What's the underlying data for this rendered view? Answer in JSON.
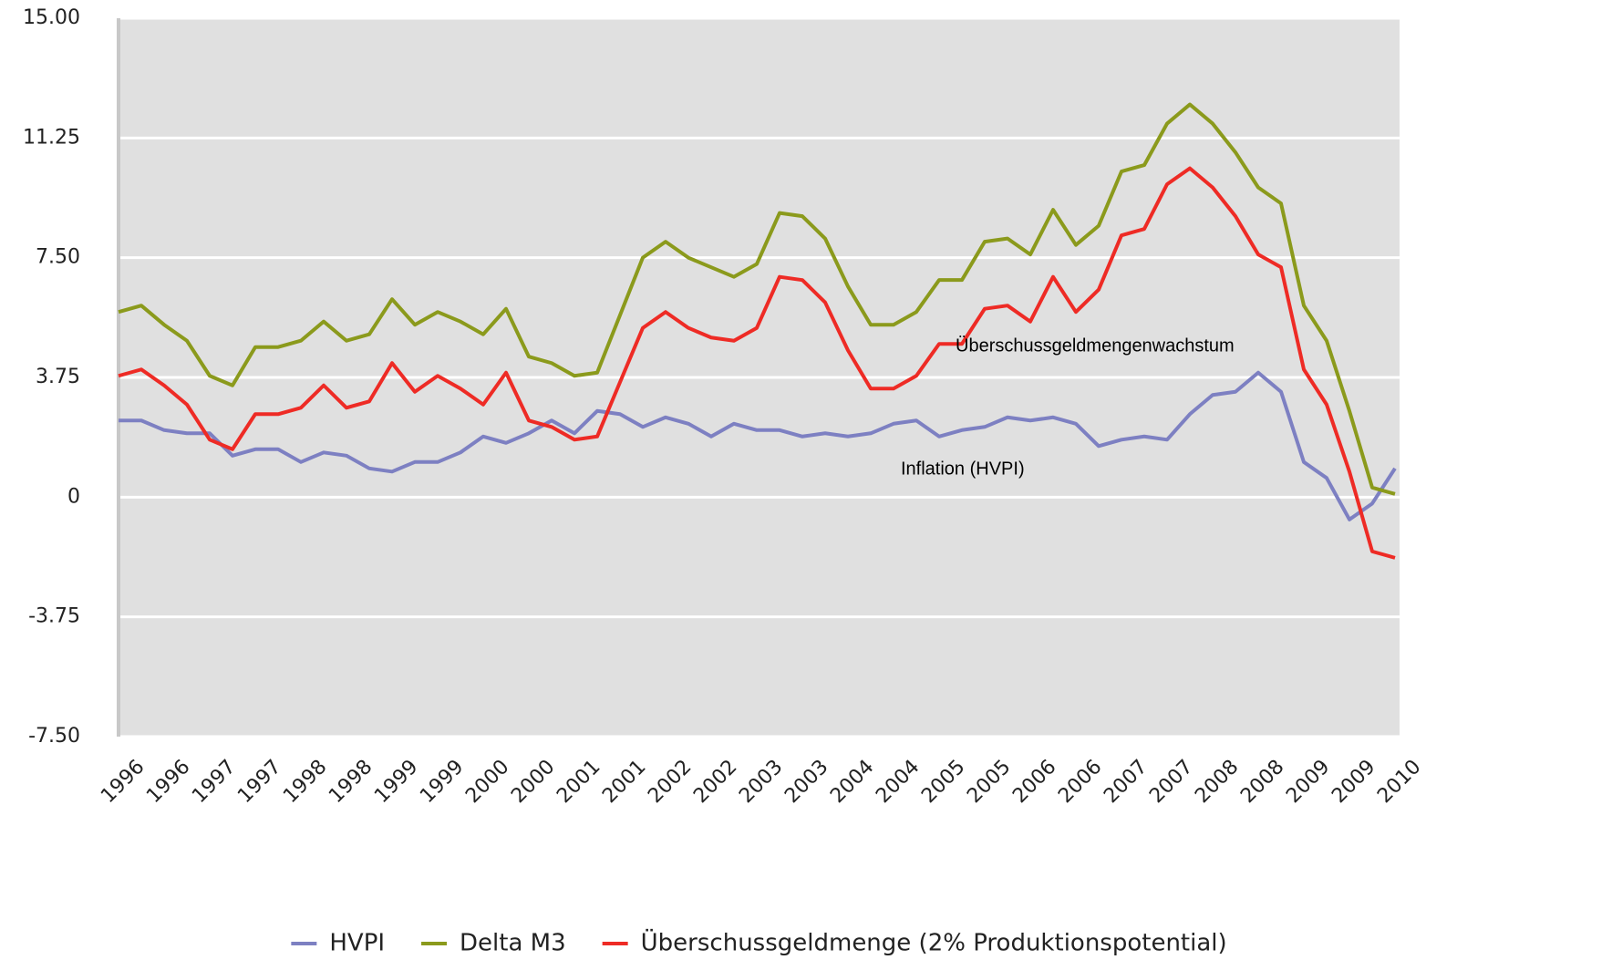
{
  "chart_data": {
    "type": "line",
    "categories": [
      "1996",
      null,
      "1996",
      null,
      "1997",
      null,
      "1997",
      null,
      "1998",
      null,
      "1998",
      null,
      "1999",
      null,
      "1999",
      null,
      "2000",
      null,
      "2000",
      null,
      "2001",
      null,
      "2001",
      null,
      "2002",
      null,
      "2002",
      null,
      "2003",
      null,
      "2003",
      null,
      "2004",
      null,
      "2004",
      null,
      "2005",
      null,
      "2005",
      null,
      "2006",
      null,
      "2006",
      null,
      "2007",
      null,
      "2007",
      null,
      "2008",
      null,
      "2008",
      null,
      "2009",
      null,
      "2009",
      null,
      "2010"
    ],
    "series": [
      {
        "name": "HVPI",
        "color": "#7d80c2",
        "values": [
          2.4,
          2.4,
          2.1,
          2.0,
          2.0,
          1.3,
          1.5,
          1.5,
          1.1,
          1.4,
          1.3,
          0.9,
          0.8,
          1.1,
          1.1,
          1.4,
          1.9,
          1.7,
          2.0,
          2.4,
          2.0,
          2.7,
          2.6,
          2.2,
          2.5,
          2.3,
          1.9,
          2.3,
          2.1,
          2.1,
          1.9,
          2.0,
          1.9,
          2.0,
          2.3,
          2.4,
          1.9,
          2.1,
          2.2,
          2.5,
          2.4,
          2.5,
          2.3,
          1.6,
          1.8,
          1.9,
          1.8,
          2.6,
          3.2,
          3.3,
          3.9,
          3.3,
          1.1,
          0.6,
          -0.7,
          -0.2,
          0.9
        ]
      },
      {
        "name": "Delta M3",
        "color": "#8b9a1c",
        "values": [
          5.8,
          6.0,
          5.4,
          4.9,
          3.8,
          3.5,
          4.7,
          4.7,
          4.9,
          5.5,
          4.9,
          5.1,
          6.2,
          5.4,
          5.8,
          5.5,
          5.1,
          5.9,
          4.4,
          4.2,
          3.8,
          3.9,
          5.7,
          7.5,
          8.0,
          7.5,
          7.2,
          6.9,
          7.3,
          8.9,
          8.8,
          8.1,
          6.6,
          5.4,
          5.4,
          5.8,
          6.8,
          6.8,
          8.0,
          8.1,
          7.6,
          9.0,
          7.9,
          8.5,
          10.2,
          10.4,
          11.7,
          12.3,
          11.7,
          10.8,
          9.7,
          9.2,
          6.0,
          4.9,
          2.7,
          0.3,
          0.1
        ]
      },
      {
        "name": "Überschussgeldmenge (2% Produktionspotential)",
        "color": "#ee2b25",
        "values": [
          3.8,
          4.0,
          3.5,
          2.9,
          1.8,
          1.5,
          2.6,
          2.6,
          2.8,
          3.5,
          2.8,
          3.0,
          4.2,
          3.3,
          3.8,
          3.4,
          2.9,
          3.9,
          2.4,
          2.2,
          1.8,
          1.9,
          3.6,
          5.3,
          5.8,
          5.3,
          5.0,
          4.9,
          5.3,
          6.9,
          6.8,
          6.1,
          4.6,
          3.4,
          3.4,
          3.8,
          4.8,
          4.8,
          5.9,
          6.0,
          5.5,
          6.9,
          5.8,
          6.5,
          8.2,
          8.4,
          9.8,
          10.3,
          9.7,
          8.8,
          7.6,
          7.2,
          4.0,
          2.9,
          0.8,
          -1.7,
          -1.9
        ]
      }
    ],
    "ylim": [
      -7.5,
      15
    ],
    "yticks": [
      {
        "value": -7.5,
        "label": "-7.50"
      },
      -3.75,
      0,
      3.75,
      {
        "value": 7.5,
        "label": "7.50"
      },
      11.25,
      {
        "value": 15,
        "label": "15.00"
      }
    ],
    "grid": true,
    "background": "#e0e0e0",
    "annotations": [
      "Überschussgeldmengenwachstum",
      "Inflation (HVPI)"
    ],
    "legend": "bottom"
  }
}
